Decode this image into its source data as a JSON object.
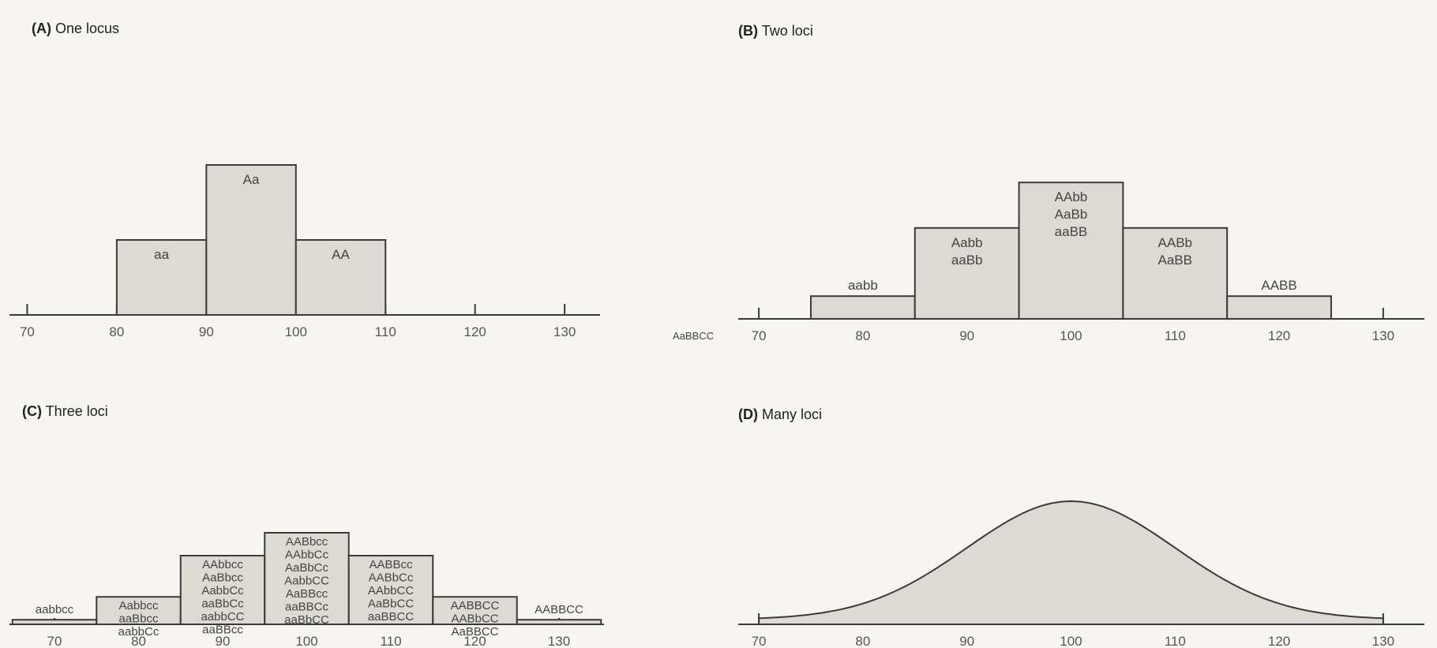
{
  "chart_data": [
    {
      "type": "bar",
      "title_letter": "(A)",
      "title": "One locus",
      "xlim": [
        70,
        130
      ],
      "x_ticks": [
        "70",
        "80",
        "90",
        "100",
        "110",
        "120",
        "130"
      ],
      "categories": [
        "aa",
        "Aa",
        "AA"
      ],
      "bins": [
        [
          80,
          90
        ],
        [
          90,
          100
        ],
        [
          100,
          110
        ]
      ],
      "values": [
        1,
        2,
        1
      ],
      "bar_labels": [
        [
          "aa"
        ],
        [
          "Aa"
        ],
        [
          "AA"
        ]
      ]
    },
    {
      "type": "bar",
      "title_letter": "(B)",
      "title": "Two loci",
      "side_label": "AaBBCC",
      "xlim": [
        70,
        130
      ],
      "x_ticks": [
        "70",
        "80",
        "90",
        "100",
        "110",
        "120",
        "130"
      ],
      "categories": [
        "aabb",
        "Aabb aaBb",
        "AAbb AaBb aaBB",
        "AABb AaBB",
        "AABB"
      ],
      "bins": [
        [
          75,
          85
        ],
        [
          85,
          95
        ],
        [
          95,
          105
        ],
        [
          105,
          115
        ],
        [
          115,
          125
        ]
      ],
      "values": [
        1,
        4,
        6,
        4,
        1
      ],
      "bar_labels": [
        [
          "aabb"
        ],
        [
          "Aabb",
          "aaBb"
        ],
        [
          "AAbb",
          "AaBb",
          "aaBB"
        ],
        [
          "AABb",
          "AaBB"
        ],
        [
          "AABB"
        ]
      ]
    },
    {
      "type": "bar",
      "title_letter": "(C)",
      "title": "Three loci",
      "xlim": [
        65,
        135
      ],
      "x_ticks": [
        "70",
        "80",
        "90",
        "100",
        "110",
        "120",
        "130"
      ],
      "categories": [
        "aabbcc",
        "Aabbcc aaBbcc aabbCc",
        "AAbbcc AaBbcc AabbCc aaBbCc aabbCC aaBBcc",
        "AABbcc AAbbCc AaBbCc AabbCC AaBBcc aaBBCc aaBbCC",
        "AABBcc AABbCc AAbbCC AaBbCC aaBBCC",
        "AABBCC AABbCC AaBBCC",
        "AABBCC"
      ],
      "bins": [
        [
          65,
          75
        ],
        [
          75,
          85
        ],
        [
          85,
          95
        ],
        [
          95,
          105
        ],
        [
          105,
          115
        ],
        [
          115,
          125
        ],
        [
          125,
          135
        ]
      ],
      "values": [
        1,
        6,
        15,
        20,
        15,
        6,
        1
      ],
      "bar_labels": [
        [
          "aabbcc"
        ],
        [
          "Aabbcc",
          "aaBbcc",
          "aabbCc"
        ],
        [
          "AAbbcc",
          "AaBbcc",
          "AabbCc",
          "aaBbCc",
          "aabbCC",
          "aaBBcc"
        ],
        [
          "AABbcc",
          "AAbbCc",
          "AaBbCc",
          "AabbCC",
          "AaBBcc",
          "aaBBCc",
          "aaBbCC"
        ],
        [
          "AABBcc",
          "AABbCc",
          "AAbbCC",
          "AaBbCC",
          "aaBBCC"
        ],
        [
          "AABBCC",
          "AABbCC",
          "AaBBCC"
        ],
        [
          "AABBCC"
        ]
      ]
    },
    {
      "type": "area",
      "title_letter": "(D)",
      "title": "Many loci",
      "xlim": [
        70,
        130
      ],
      "x_ticks": [
        "70",
        "80",
        "90",
        "100",
        "110",
        "120",
        "130"
      ],
      "curve": {
        "mean": 100,
        "sd": 10,
        "from": 70,
        "to": 130
      }
    }
  ]
}
